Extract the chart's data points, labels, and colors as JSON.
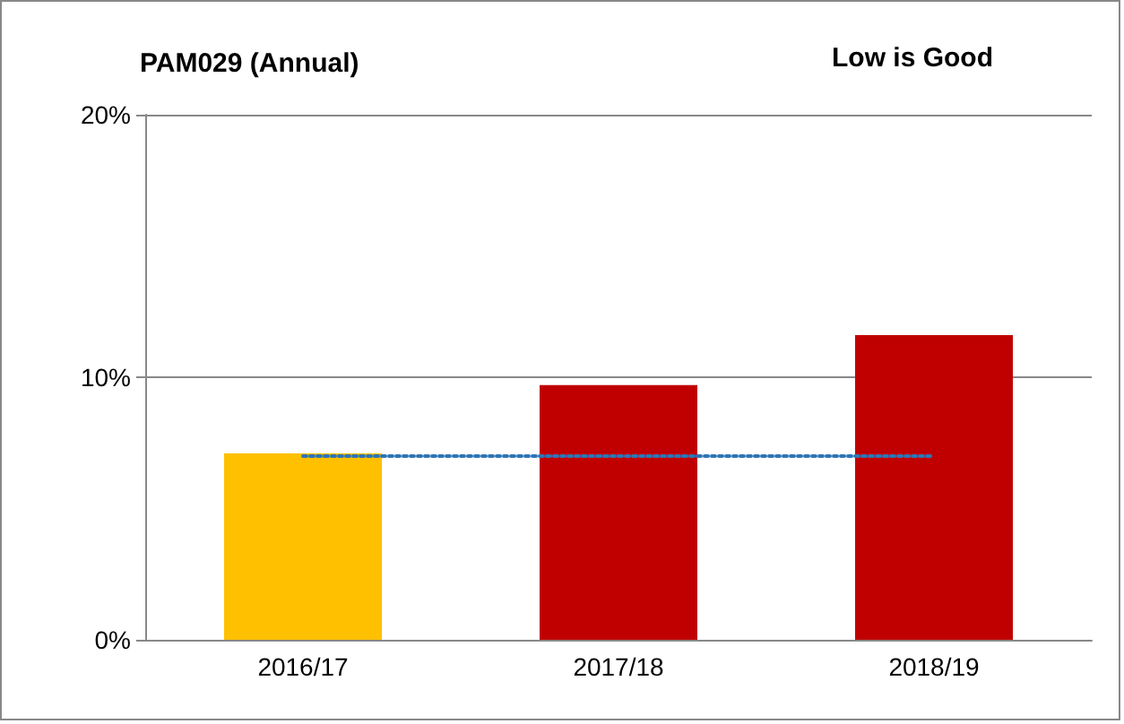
{
  "chart_data": {
    "type": "bar",
    "title": "PAM029 (Annual)",
    "annotations": [
      "Low is Good"
    ],
    "categories": [
      "2016/17",
      "2017/18",
      "2018/19"
    ],
    "series": [
      {
        "colors": [
          "#ffc000",
          "#c00000",
          "#c00000"
        ],
        "values": [
          7.1,
          9.7,
          11.6
        ]
      },
      {
        "type": "line",
        "color": "#2e75b6",
        "values": [
          7.0,
          7.0,
          7.0
        ],
        "line_style": "dotted",
        "marker": "none"
      }
    ],
    "ylim": [
      0,
      20
    ],
    "yticks": [
      {
        "value": 0,
        "label": "0%"
      },
      {
        "value": 10,
        "label": "10%"
      },
      {
        "value": 20,
        "label": "20%"
      }
    ],
    "grid": "y"
  }
}
